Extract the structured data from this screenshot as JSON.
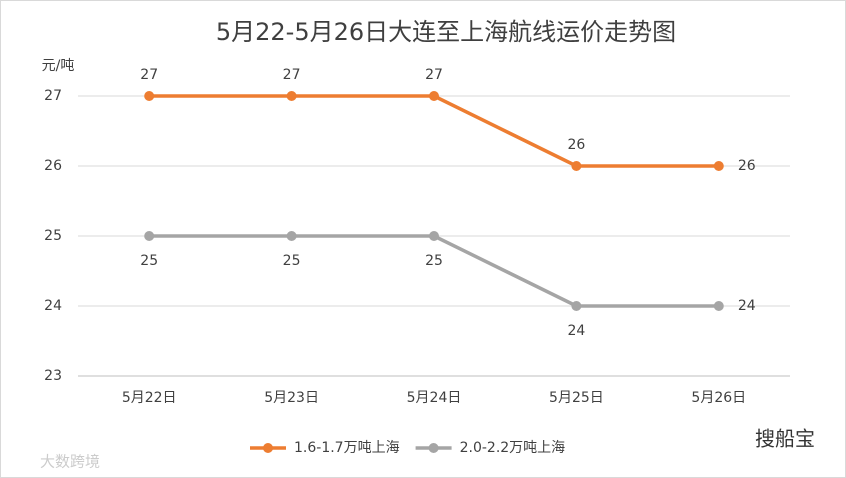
{
  "chart_data": {
    "type": "line",
    "title": "5月22-5月26日大连至上海航线运价走势图",
    "y_label": "元/吨",
    "categories": [
      "5月22日",
      "5月23日",
      "5月24日",
      "5月25日",
      "5月26日"
    ],
    "series": [
      {
        "name": "1.6-1.7万吨上海",
        "color": "#ed7d31",
        "values": [
          27,
          27,
          27,
          26,
          26
        ]
      },
      {
        "name": "2.0-2.2万吨上海",
        "color": "#a5a5a5",
        "values": [
          25,
          25,
          25,
          24,
          24
        ]
      }
    ],
    "ylim": [
      23,
      27
    ],
    "yticks": [
      23,
      24,
      25,
      26,
      27
    ],
    "grid": true,
    "watermarks": [
      "搜船宝",
      "大数跨境"
    ]
  }
}
